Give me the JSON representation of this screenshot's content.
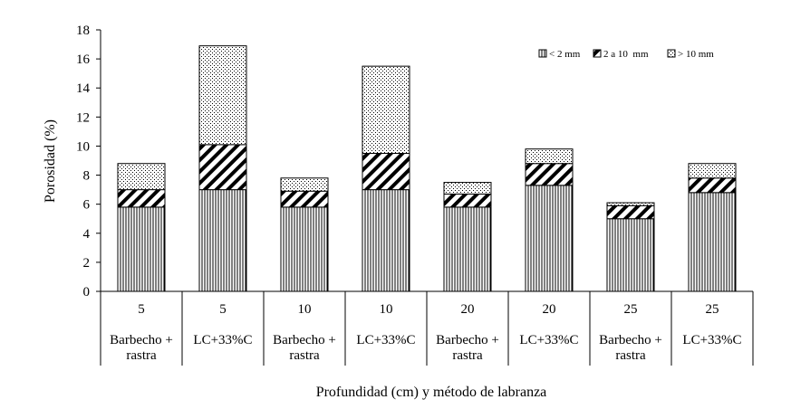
{
  "chart_data": {
    "type": "bar",
    "stacked": true,
    "title": "",
    "xlabel": "Profundidad (cm) y método de labranza",
    "ylabel": "Porosidad (%)",
    "ylim": [
      0,
      18
    ],
    "yticks": [
      "0",
      "2",
      "4",
      "6",
      "8",
      "10",
      "12",
      "14",
      "16",
      "18"
    ],
    "grid": false,
    "legend_position": "top-right",
    "categories": [
      {
        "depth": "5",
        "method_line1": "Barbecho +",
        "method_line2": "rastra"
      },
      {
        "depth": "5",
        "method_line1": "LC+33%C",
        "method_line2": ""
      },
      {
        "depth": "10",
        "method_line1": "Barbecho +",
        "method_line2": "rastra"
      },
      {
        "depth": "10",
        "method_line1": "LC+33%C",
        "method_line2": ""
      },
      {
        "depth": "20",
        "method_line1": "Barbecho +",
        "method_line2": "rastra"
      },
      {
        "depth": "20",
        "method_line1": "LC+33%C",
        "method_line2": ""
      },
      {
        "depth": "25",
        "method_line1": "Barbecho +",
        "method_line2": "rastra"
      },
      {
        "depth": "25",
        "method_line1": "LC+33%C",
        "method_line2": ""
      }
    ],
    "series": [
      {
        "name": "< 2 mm",
        "pattern": "vertical-lines",
        "values": [
          5.8,
          7.0,
          5.8,
          7.0,
          5.8,
          7.3,
          5.0,
          6.8
        ]
      },
      {
        "name": "2 a 10  mm",
        "pattern": "diagonal-lines",
        "values": [
          1.2,
          3.1,
          1.1,
          2.5,
          0.9,
          1.5,
          0.9,
          1.0
        ]
      },
      {
        "name": "> 10 mm",
        "pattern": "dots",
        "values": [
          1.8,
          6.8,
          0.9,
          6.0,
          0.8,
          1.0,
          0.2,
          1.0
        ]
      }
    ],
    "colors": {
      "stroke": "#000000",
      "background": "#ffffff"
    }
  }
}
